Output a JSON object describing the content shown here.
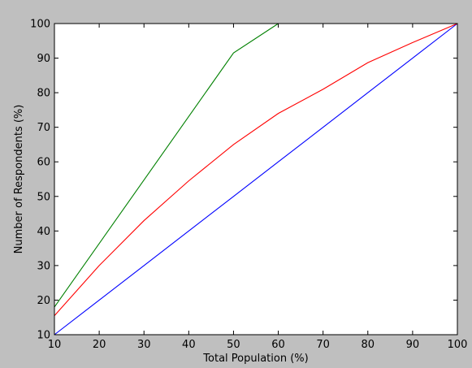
{
  "chart_data": {
    "type": "line",
    "title": "",
    "xlabel": "Total Population (%)",
    "ylabel": "Number of Respondents (%)",
    "xlim": [
      10,
      100
    ],
    "ylim": [
      10,
      100
    ],
    "xticks": [
      10,
      20,
      30,
      40,
      50,
      60,
      70,
      80,
      90,
      100
    ],
    "yticks": [
      10,
      20,
      30,
      40,
      50,
      60,
      70,
      80,
      90,
      100
    ],
    "grid": false,
    "background_color": "#bfbfbf",
    "plot_background_color": "#ffffff",
    "series": [
      {
        "color": "#0000ff",
        "x": [
          10,
          20,
          30,
          40,
          50,
          60,
          70,
          80,
          90,
          100
        ],
        "y": [
          10,
          20,
          30,
          40,
          50,
          60,
          70,
          80,
          90,
          100
        ]
      },
      {
        "color": "#ff0000",
        "x": [
          10,
          20,
          30,
          40,
          50,
          60,
          70,
          80,
          90,
          100
        ],
        "y": [
          15.5,
          30,
          43,
          54.5,
          65,
          74,
          81,
          88.7,
          94.5,
          100
        ]
      },
      {
        "color": "#008000",
        "x": [
          10,
          50,
          60
        ],
        "y": [
          18,
          91.5,
          100
        ]
      }
    ]
  }
}
